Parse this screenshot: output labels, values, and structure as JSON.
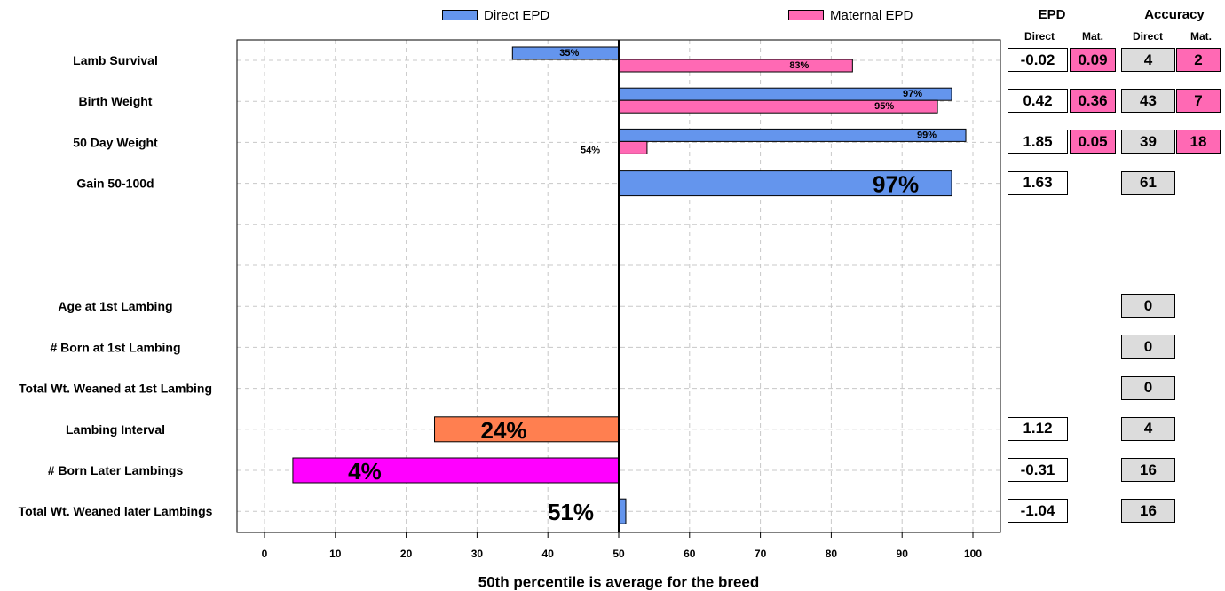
{
  "legend": {
    "direct": {
      "label": "Direct EPD",
      "color": "#6495ED"
    },
    "maternal": {
      "label": "Maternal EPD",
      "color": "#FF69B4"
    }
  },
  "table_header": {
    "epd": "EPD",
    "accuracy": "Accuracy",
    "direct": "Direct",
    "mat": "Mat.",
    "acc_direct": "Direct",
    "acc_mat": "Mat."
  },
  "colors": {
    "direct": "#6495ED",
    "maternal": "#FF69B4",
    "lambing_interval": "#FF7F50",
    "born_later": "#FF00FF",
    "grid": "#C8C8C8",
    "acc_cell": "#DCDCDC"
  },
  "chart_data": {
    "type": "bar",
    "orientation": "horizontal",
    "baseline": 50,
    "xlim": [
      0,
      100
    ],
    "xticks": [
      0,
      10,
      20,
      30,
      40,
      50,
      60,
      70,
      80,
      90,
      100
    ],
    "xlabel": "50th percentile is average for the breed",
    "categories": [
      "Lamb Survival",
      "Birth Weight",
      "50 Day Weight",
      "Gain 50-100d",
      "",
      "",
      "Age at 1st Lambing",
      "# Born at 1st Lambing",
      "Total Wt. Weaned at 1st Lambing",
      "Lambing Interval",
      "# Born Later Lambings",
      "Total Wt. Weaned later Lambings"
    ],
    "series": [
      {
        "name": "Direct EPD",
        "values": [
          35,
          97,
          99,
          97,
          null,
          null,
          null,
          null,
          null,
          24,
          4,
          51
        ],
        "labels": [
          "35%",
          "97%",
          "99%",
          "97%",
          "",
          "",
          "",
          "",
          "",
          "24%",
          "4%",
          "51%"
        ]
      },
      {
        "name": "Maternal EPD",
        "values": [
          83,
          95,
          54,
          null,
          null,
          null,
          null,
          null,
          null,
          null,
          null,
          null
        ],
        "labels": [
          "83%",
          "95%",
          "54%",
          "",
          "",
          "",
          "",
          "",
          "",
          "",
          "",
          ""
        ]
      }
    ],
    "grid": true
  },
  "table_rows": [
    {
      "epd_direct": "-0.02",
      "epd_mat": "0.09",
      "acc_direct": "4",
      "acc_mat": "2"
    },
    {
      "epd_direct": "0.42",
      "epd_mat": "0.36",
      "acc_direct": "43",
      "acc_mat": "7"
    },
    {
      "epd_direct": "1.85",
      "epd_mat": "0.05",
      "acc_direct": "39",
      "acc_mat": "18"
    },
    {
      "epd_direct": "1.63",
      "epd_mat": null,
      "acc_direct": "61",
      "acc_mat": null
    },
    {
      "epd_direct": null,
      "epd_mat": null,
      "acc_direct": null,
      "acc_mat": null
    },
    {
      "epd_direct": null,
      "epd_mat": null,
      "acc_direct": null,
      "acc_mat": null
    },
    {
      "epd_direct": null,
      "epd_mat": null,
      "acc_direct": "0",
      "acc_mat": null
    },
    {
      "epd_direct": null,
      "epd_mat": null,
      "acc_direct": "0",
      "acc_mat": null
    },
    {
      "epd_direct": null,
      "epd_mat": null,
      "acc_direct": "0",
      "acc_mat": null
    },
    {
      "epd_direct": "1.12",
      "epd_mat": null,
      "acc_direct": "4",
      "acc_mat": null
    },
    {
      "epd_direct": "-0.31",
      "epd_mat": null,
      "acc_direct": "16",
      "acc_mat": null
    },
    {
      "epd_direct": "-1.04",
      "epd_mat": null,
      "acc_direct": "16",
      "acc_mat": null
    }
  ]
}
